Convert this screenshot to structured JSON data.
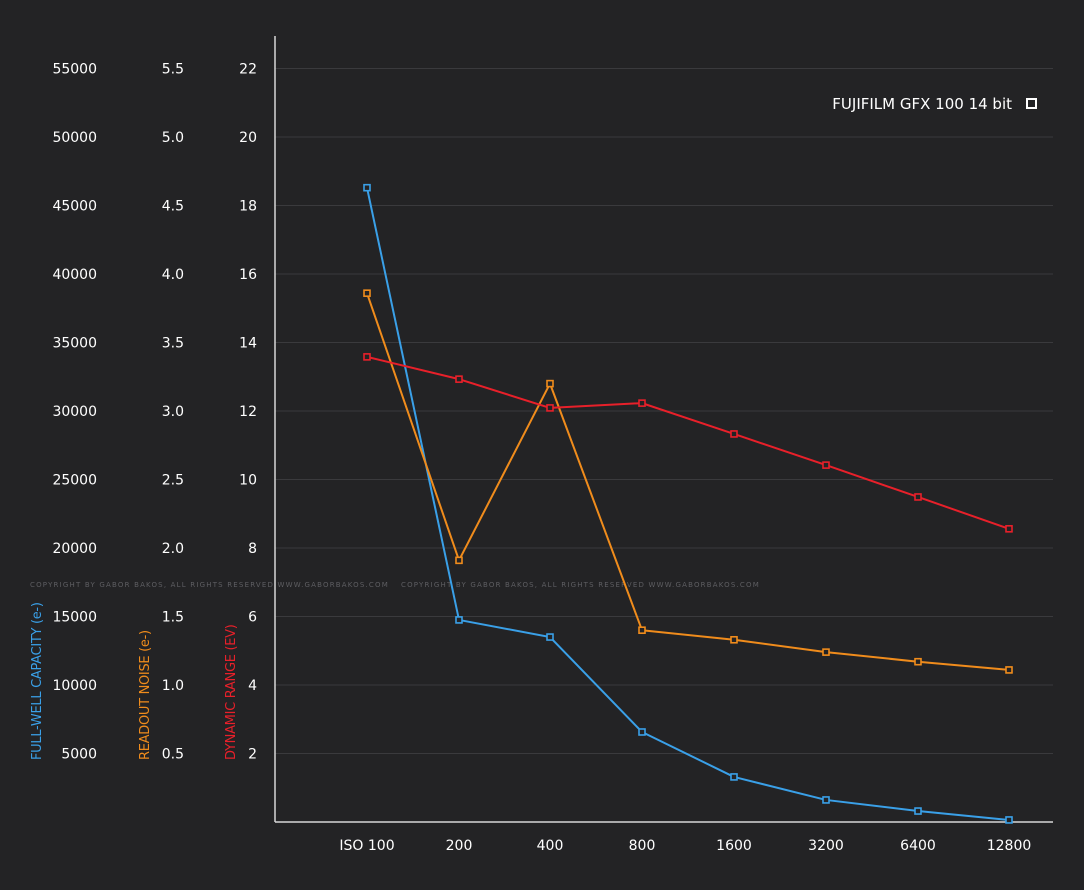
{
  "chart_data": {
    "type": "line",
    "title": "",
    "categories": [
      "ISO 100",
      "200",
      "400",
      "800",
      "1600",
      "3200",
      "6400",
      "12800"
    ],
    "legend": {
      "label": "FUJIFILM GFX 100 14 bit",
      "placement": "top-right"
    },
    "watermark": "COPYRIGHT BY GABOR BAKOS, ALL RIGHTS RESERVED WWW.GABORBAKOS.COM",
    "grid": true,
    "axes": [
      {
        "id": "fwc",
        "label": "FULL-WELL CAPACITY (e-)",
        "color": "#3aa0e8",
        "ticks": [
          "5000",
          "10000",
          "15000",
          "20000",
          "25000",
          "30000",
          "35000",
          "40000",
          "45000",
          "50000",
          "55000"
        ],
        "tick_values": [
          5000,
          10000,
          15000,
          20000,
          25000,
          30000,
          35000,
          40000,
          45000,
          50000,
          55000
        ],
        "range": [
          0,
          55000
        ]
      },
      {
        "id": "noise",
        "label": "READOUT NOISE (e-)",
        "color": "#f08c1c",
        "ticks": [
          "0.5",
          "1.0",
          "1.5",
          "2.0",
          "2.5",
          "3.0",
          "3.5",
          "4.0",
          "4.5",
          "5.0",
          "5.5"
        ],
        "tick_values": [
          0.5,
          1.0,
          1.5,
          2.0,
          2.5,
          3.0,
          3.5,
          4.0,
          4.5,
          5.0,
          5.5
        ],
        "range": [
          0,
          5.5
        ]
      },
      {
        "id": "dr",
        "label": "DYNAMIC RANGE (EV)",
        "color": "#e8202a",
        "ticks": [
          "2",
          "4",
          "6",
          "8",
          "10",
          "12",
          "14",
          "16",
          "18",
          "20",
          "22"
        ],
        "tick_values": [
          2,
          4,
          6,
          8,
          10,
          12,
          14,
          16,
          18,
          20,
          22
        ],
        "range": [
          0,
          22
        ]
      }
    ],
    "series": [
      {
        "name": "Full-well capacity",
        "axis": "fwc",
        "color": "#3aa0e8",
        "values": [
          46300,
          14750,
          13500,
          6570,
          3290,
          1610,
          800,
          150
        ]
      },
      {
        "name": "Readout noise",
        "axis": "noise",
        "color": "#f08c1c",
        "values": [
          3.86,
          1.91,
          3.2,
          1.4,
          1.33,
          1.24,
          1.17,
          1.11
        ]
      },
      {
        "name": "Dynamic range",
        "axis": "dr",
        "color": "#e8202a",
        "values": [
          13.58,
          12.93,
          12.09,
          12.23,
          11.33,
          10.42,
          9.49,
          8.56
        ]
      }
    ]
  }
}
